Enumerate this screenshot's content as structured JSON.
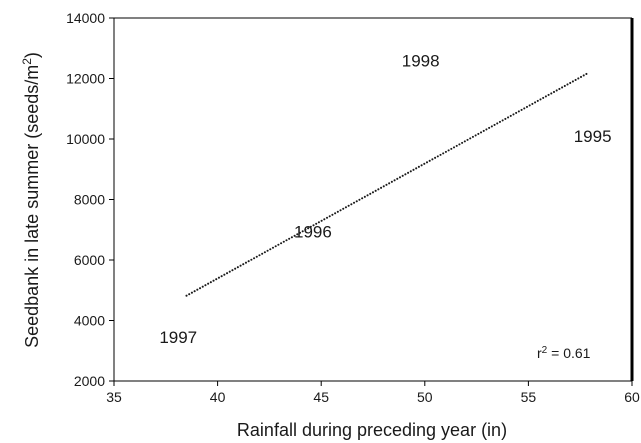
{
  "chart_data": {
    "type": "scatter",
    "xlabel": "Rainfall during preceding year (in)",
    "ylabel": "Seedbank in late summer (seeds/m",
    "ylabel_superscript": "2",
    "ylabel_suffix": ")",
    "xlim": [
      35,
      60
    ],
    "ylim": [
      2000,
      14000
    ],
    "x_ticks": [
      35,
      40,
      45,
      50,
      55,
      60
    ],
    "y_ticks": [
      2000,
      4000,
      6000,
      8000,
      10000,
      12000,
      14000
    ],
    "points": [
      {
        "label": "1997",
        "x": 38.1,
        "y": 3450
      },
      {
        "label": "1996",
        "x": 44.6,
        "y": 6950
      },
      {
        "label": "1998",
        "x": 49.8,
        "y": 12600
      },
      {
        "label": "1995",
        "x": 58.1,
        "y": 10100
      }
    ],
    "trendline": {
      "x": [
        38.5,
        57.8
      ],
      "y": [
        4820,
        12150
      ],
      "style": "dotted"
    },
    "annotation": {
      "prefix": "r",
      "superscript": "2",
      "text": " = 0.61"
    },
    "grid": false,
    "legend": "none"
  }
}
